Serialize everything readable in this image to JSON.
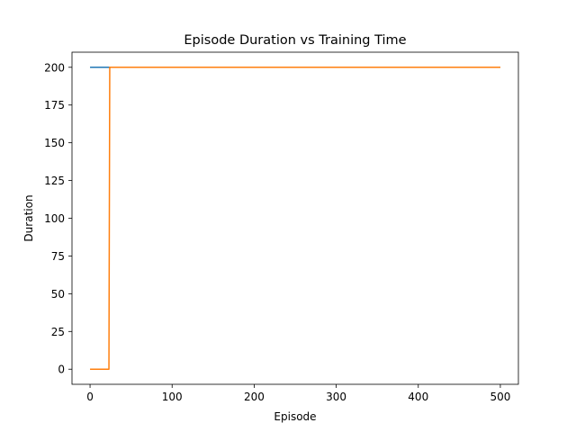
{
  "chart_data": {
    "type": "line",
    "title": "Episode Duration vs Training Time",
    "xlabel": "Episode",
    "ylabel": "Duration",
    "xlim": [
      -22,
      522
    ],
    "ylim": [
      -10,
      210
    ],
    "xticks": [
      0,
      100,
      200,
      300,
      400,
      500
    ],
    "yticks": [
      0,
      25,
      50,
      75,
      100,
      125,
      150,
      175,
      200
    ],
    "grid": false,
    "legend": null,
    "series": [
      {
        "color": "#1f77b4",
        "x": [
          0,
          500
        ],
        "y": [
          200,
          200
        ]
      },
      {
        "color": "#ff7f0e",
        "x": [
          0,
          23,
          24,
          500
        ],
        "y": [
          0,
          0,
          200,
          200
        ]
      }
    ]
  }
}
